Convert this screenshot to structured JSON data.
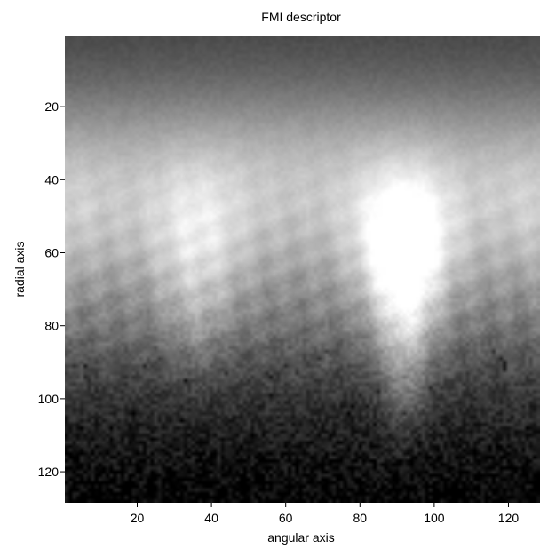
{
  "chart_data": {
    "type": "heatmap",
    "title": "FMI descriptor",
    "xlabel": "angular axis",
    "ylabel": "radial axis",
    "xlim": [
      0.5,
      128.5
    ],
    "ylim": [
      0.5,
      128.5
    ],
    "y_reversed": true,
    "x_ticks": [
      20,
      40,
      60,
      80,
      100,
      120
    ],
    "y_ticks": [
      20,
      40,
      60,
      80,
      100,
      120
    ],
    "x_tick_labels": [
      "20",
      "40",
      "60",
      "80",
      "100",
      "120"
    ],
    "y_tick_labels": [
      "20",
      "40",
      "60",
      "80",
      "100",
      "120"
    ],
    "grid": false,
    "legend": "none",
    "colormap": "gray",
    "matrix_size": [
      128,
      128
    ],
    "value_range": [
      0,
      1
    ],
    "bright_features": [
      {
        "angular": 92,
        "radial": 60,
        "value": 1.0
      },
      {
        "angular": 36,
        "radial": 58,
        "value": 0.85
      },
      {
        "angular": 92,
        "radial": 78,
        "value": 0.9
      }
    ]
  }
}
